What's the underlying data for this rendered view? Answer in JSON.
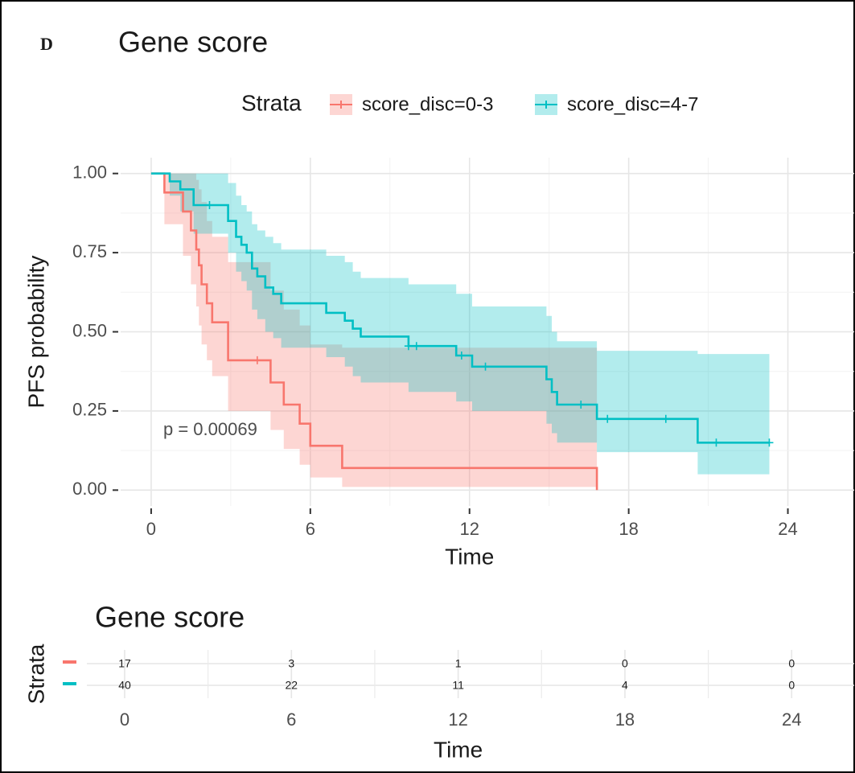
{
  "panel_label": "D",
  "chart_data": [
    {
      "type": "step",
      "title": "Gene score",
      "legend_title": "Strata",
      "xlabel": "Time",
      "ylabel": "PFS probability",
      "annotation": "p = 0.00069",
      "xlim": [
        -1.15,
        26.5
      ],
      "ylim": [
        -0.05,
        1.05
      ],
      "xticks": [
        0,
        6,
        12,
        18,
        24
      ],
      "yticks": [
        {
          "value": 0,
          "label": "0.00"
        },
        {
          "value": 0.25,
          "label": "0.25"
        },
        {
          "value": 0.5,
          "label": "0.50"
        },
        {
          "value": 0.75,
          "label": "0.75"
        },
        {
          "value": 1,
          "label": "1.00"
        }
      ],
      "grid": true,
      "series": [
        {
          "name": "score_disc=0-3",
          "color": "#F8766D",
          "x": [
            0,
            0.5,
            1.2,
            1.5,
            1.7,
            1.8,
            1.9,
            2.1,
            2.3,
            2.9,
            4.5,
            5.0,
            5.6,
            6.0,
            7.2,
            16.8
          ],
          "values": [
            1,
            0.94,
            0.88,
            0.82,
            0.76,
            0.71,
            0.65,
            0.59,
            0.53,
            0.41,
            0.34,
            0.27,
            0.21,
            0.14,
            0.07,
            0
          ],
          "lower": [
            1,
            0.84,
            0.74,
            0.65,
            0.58,
            0.52,
            0.46,
            0.41,
            0.36,
            0.25,
            0.19,
            0.13,
            0.08,
            0.04,
            0.01,
            0
          ],
          "upper": [
            1,
            1,
            1,
            1,
            0.98,
            0.95,
            0.91,
            0.85,
            0.8,
            0.72,
            0.63,
            0.57,
            0.52,
            0.46,
            0.45,
            0
          ],
          "censor_x": [
            4.0
          ],
          "censor_values": [
            0.41
          ]
        },
        {
          "name": "score_disc=4-7",
          "color": "#00BFC4",
          "x": [
            0,
            0.7,
            1.1,
            1.6,
            2.9,
            3.2,
            3.4,
            3.6,
            3.8,
            4.0,
            4.3,
            4.6,
            4.9,
            6.6,
            7.3,
            7.6,
            7.9,
            9.7,
            11.5,
            12.1,
            14.9,
            15.1,
            15.3,
            16.8,
            20.6,
            23.3
          ],
          "values": [
            1,
            0.975,
            0.95,
            0.9,
            0.85,
            0.8,
            0.775,
            0.75,
            0.7,
            0.675,
            0.64,
            0.62,
            0.59,
            0.56,
            0.535,
            0.51,
            0.485,
            0.455,
            0.425,
            0.39,
            0.35,
            0.31,
            0.27,
            0.225,
            0.15,
            0.15
          ],
          "lower": [
            1,
            0.93,
            0.88,
            0.81,
            0.75,
            0.69,
            0.66,
            0.63,
            0.57,
            0.54,
            0.5,
            0.48,
            0.45,
            0.42,
            0.39,
            0.36,
            0.34,
            0.31,
            0.28,
            0.25,
            0.21,
            0.18,
            0.15,
            0.12,
            0.05,
            0.05
          ],
          "upper": [
            1,
            1,
            1,
            1,
            0.97,
            0.93,
            0.9,
            0.88,
            0.84,
            0.82,
            0.8,
            0.78,
            0.76,
            0.74,
            0.72,
            0.69,
            0.67,
            0.65,
            0.62,
            0.58,
            0.55,
            0.5,
            0.47,
            0.44,
            0.43,
            0.43
          ],
          "censor_x": [
            2.2,
            9.7,
            10.0,
            11.7,
            12.6,
            16.2,
            17.2,
            19.4,
            21.3,
            23.3
          ],
          "censor_values": [
            0.9,
            0.455,
            0.455,
            0.425,
            0.39,
            0.27,
            0.225,
            0.225,
            0.15,
            0.15
          ]
        }
      ]
    },
    {
      "type": "risk_table",
      "title": "Gene score",
      "xlabel": "Time",
      "ylabel": "Strata",
      "xlim": [
        -1.36,
        26.25
      ],
      "xticks": [
        0,
        6,
        12,
        18,
        24
      ],
      "series": [
        {
          "color": "#F8766D",
          "values": [
            17,
            3,
            1,
            0,
            0
          ]
        },
        {
          "color": "#00BFC4",
          "values": [
            40,
            22,
            11,
            4,
            0
          ]
        }
      ]
    }
  ]
}
